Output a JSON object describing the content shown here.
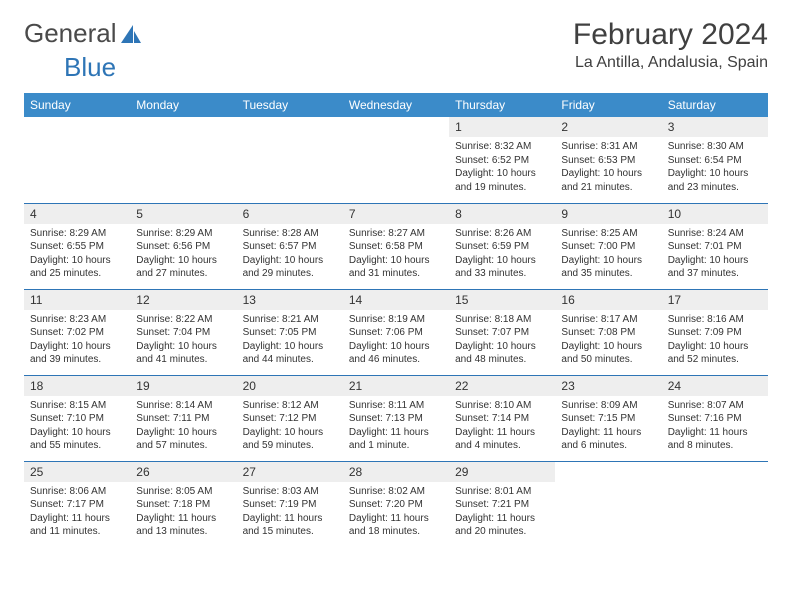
{
  "logo": {
    "part1": "General",
    "part2": "Blue"
  },
  "title": "February 2024",
  "location": "La Antilla, Andalusia, Spain",
  "colors": {
    "header_bg": "#3b8bc9",
    "header_text": "#ffffff",
    "daynum_bg": "#eeeeee",
    "border": "#2e75b6",
    "text": "#333333",
    "title": "#404040"
  },
  "weekdays": [
    "Sunday",
    "Monday",
    "Tuesday",
    "Wednesday",
    "Thursday",
    "Friday",
    "Saturday"
  ],
  "grid": {
    "rows": 5,
    "cols": 7,
    "start_weekday_index": 4,
    "days_in_month": 29
  },
  "days": {
    "1": {
      "sunrise": "8:32 AM",
      "sunset": "6:52 PM",
      "daylight": "10 hours and 19 minutes."
    },
    "2": {
      "sunrise": "8:31 AM",
      "sunset": "6:53 PM",
      "daylight": "10 hours and 21 minutes."
    },
    "3": {
      "sunrise": "8:30 AM",
      "sunset": "6:54 PM",
      "daylight": "10 hours and 23 minutes."
    },
    "4": {
      "sunrise": "8:29 AM",
      "sunset": "6:55 PM",
      "daylight": "10 hours and 25 minutes."
    },
    "5": {
      "sunrise": "8:29 AM",
      "sunset": "6:56 PM",
      "daylight": "10 hours and 27 minutes."
    },
    "6": {
      "sunrise": "8:28 AM",
      "sunset": "6:57 PM",
      "daylight": "10 hours and 29 minutes."
    },
    "7": {
      "sunrise": "8:27 AM",
      "sunset": "6:58 PM",
      "daylight": "10 hours and 31 minutes."
    },
    "8": {
      "sunrise": "8:26 AM",
      "sunset": "6:59 PM",
      "daylight": "10 hours and 33 minutes."
    },
    "9": {
      "sunrise": "8:25 AM",
      "sunset": "7:00 PM",
      "daylight": "10 hours and 35 minutes."
    },
    "10": {
      "sunrise": "8:24 AM",
      "sunset": "7:01 PM",
      "daylight": "10 hours and 37 minutes."
    },
    "11": {
      "sunrise": "8:23 AM",
      "sunset": "7:02 PM",
      "daylight": "10 hours and 39 minutes."
    },
    "12": {
      "sunrise": "8:22 AM",
      "sunset": "7:04 PM",
      "daylight": "10 hours and 41 minutes."
    },
    "13": {
      "sunrise": "8:21 AM",
      "sunset": "7:05 PM",
      "daylight": "10 hours and 44 minutes."
    },
    "14": {
      "sunrise": "8:19 AM",
      "sunset": "7:06 PM",
      "daylight": "10 hours and 46 minutes."
    },
    "15": {
      "sunrise": "8:18 AM",
      "sunset": "7:07 PM",
      "daylight": "10 hours and 48 minutes."
    },
    "16": {
      "sunrise": "8:17 AM",
      "sunset": "7:08 PM",
      "daylight": "10 hours and 50 minutes."
    },
    "17": {
      "sunrise": "8:16 AM",
      "sunset": "7:09 PM",
      "daylight": "10 hours and 52 minutes."
    },
    "18": {
      "sunrise": "8:15 AM",
      "sunset": "7:10 PM",
      "daylight": "10 hours and 55 minutes."
    },
    "19": {
      "sunrise": "8:14 AM",
      "sunset": "7:11 PM",
      "daylight": "10 hours and 57 minutes."
    },
    "20": {
      "sunrise": "8:12 AM",
      "sunset": "7:12 PM",
      "daylight": "10 hours and 59 minutes."
    },
    "21": {
      "sunrise": "8:11 AM",
      "sunset": "7:13 PM",
      "daylight": "11 hours and 1 minute."
    },
    "22": {
      "sunrise": "8:10 AM",
      "sunset": "7:14 PM",
      "daylight": "11 hours and 4 minutes."
    },
    "23": {
      "sunrise": "8:09 AM",
      "sunset": "7:15 PM",
      "daylight": "11 hours and 6 minutes."
    },
    "24": {
      "sunrise": "8:07 AM",
      "sunset": "7:16 PM",
      "daylight": "11 hours and 8 minutes."
    },
    "25": {
      "sunrise": "8:06 AM",
      "sunset": "7:17 PM",
      "daylight": "11 hours and 11 minutes."
    },
    "26": {
      "sunrise": "8:05 AM",
      "sunset": "7:18 PM",
      "daylight": "11 hours and 13 minutes."
    },
    "27": {
      "sunrise": "8:03 AM",
      "sunset": "7:19 PM",
      "daylight": "11 hours and 15 minutes."
    },
    "28": {
      "sunrise": "8:02 AM",
      "sunset": "7:20 PM",
      "daylight": "11 hours and 18 minutes."
    },
    "29": {
      "sunrise": "8:01 AM",
      "sunset": "7:21 PM",
      "daylight": "11 hours and 20 minutes."
    }
  },
  "labels": {
    "sunrise": "Sunrise: ",
    "sunset": "Sunset: ",
    "daylight": "Daylight: "
  }
}
